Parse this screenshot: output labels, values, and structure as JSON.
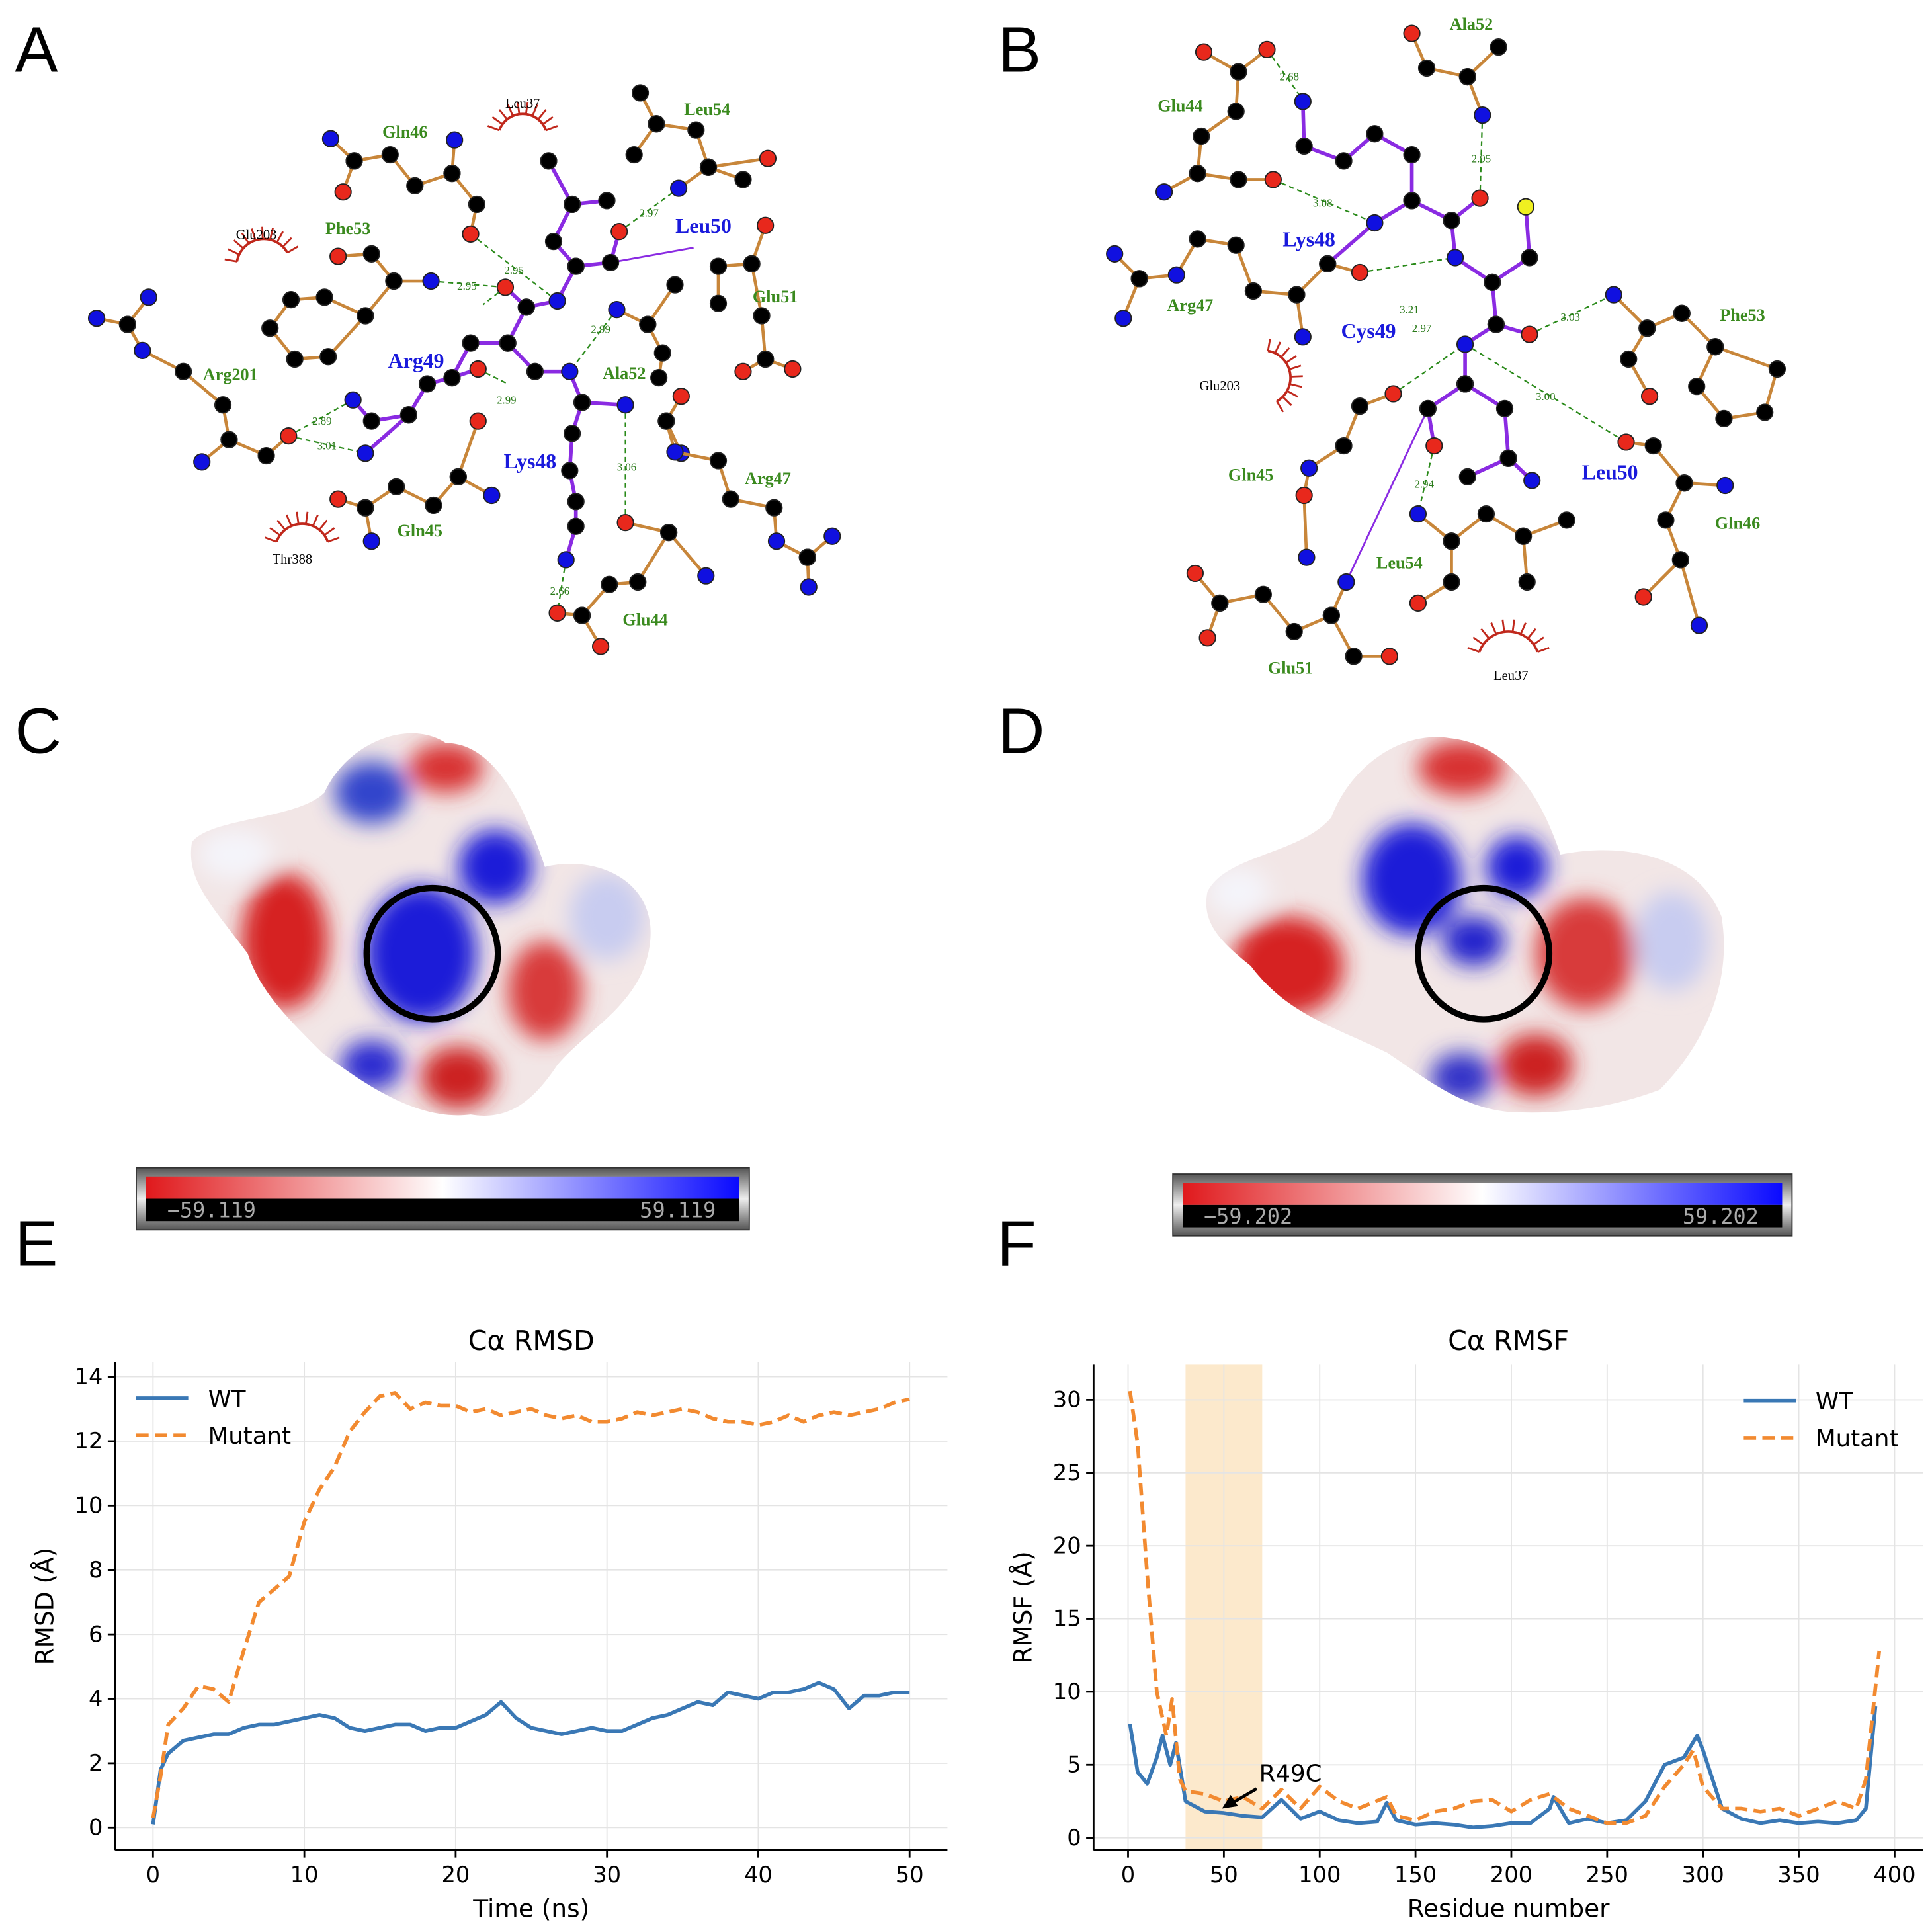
{
  "panels": {
    "A": {
      "label": "A",
      "residues": [
        "Gln46",
        "Leu37",
        "Leu54",
        "Glu203",
        "Phe53",
        "Leu50",
        "Glu51",
        "Arg201",
        "Arg49",
        "Ala52",
        "Lys48",
        "Arg47",
        "Gln45",
        "Thr388",
        "Glu44"
      ],
      "distances": [
        "2.97",
        "2.95",
        "2.95",
        "2.99",
        "2.99",
        "2.89",
        "3.01",
        "3.06",
        "2.66"
      ]
    },
    "B": {
      "label": "B",
      "residues": [
        "Ala52",
        "Glu44",
        "Lys48",
        "Arg47",
        "Cys49",
        "Phe53",
        "Glu203",
        "Gln45",
        "Leu50",
        "Gln46",
        "Leu54",
        "Glu51",
        "Leu37"
      ],
      "distances": [
        "2.68",
        "2.95",
        "3.08",
        "3.21",
        "2.97",
        "3.03",
        "3.00",
        "2.94"
      ]
    },
    "C": {
      "label": "C",
      "colorbar": {
        "min": "−59.119",
        "max": "59.119"
      }
    },
    "D": {
      "label": "D",
      "colorbar": {
        "min": "−59.202",
        "max": "59.202"
      }
    }
  },
  "chart_data": [
    {
      "type": "line",
      "panel_label": "E",
      "title": "Cα RMSD",
      "xlabel": "Time (ns)",
      "ylabel": "RMSD (Å)",
      "x": [
        0,
        0.5,
        1,
        2,
        3,
        4,
        5,
        6,
        7,
        8,
        9,
        10,
        11,
        12,
        13,
        14,
        15,
        16,
        17,
        18,
        19,
        20,
        21,
        22,
        23,
        24,
        25,
        26,
        27,
        28,
        29,
        30,
        31,
        32,
        33,
        34,
        35,
        36,
        37,
        38,
        39,
        40,
        41,
        42,
        43,
        44,
        45,
        46,
        47,
        48,
        49,
        50
      ],
      "series": [
        {
          "name": "WT",
          "color": "#3a78b5",
          "style": "solid",
          "values": [
            0.1,
            1.8,
            2.3,
            2.7,
            2.8,
            2.9,
            2.9,
            3.1,
            3.2,
            3.2,
            3.3,
            3.4,
            3.5,
            3.4,
            3.1,
            3.0,
            3.1,
            3.2,
            3.2,
            3.0,
            3.1,
            3.1,
            3.3,
            3.5,
            3.9,
            3.4,
            3.1,
            3.0,
            2.9,
            3.0,
            3.1,
            3.0,
            3.0,
            3.2,
            3.4,
            3.5,
            3.7,
            3.9,
            3.8,
            4.2,
            4.1,
            4.0,
            4.2,
            4.2,
            4.3,
            4.5,
            4.3,
            3.7,
            4.1,
            4.1,
            4.2,
            4.2
          ]
        },
        {
          "name": "Mutant",
          "color": "#f28a30",
          "style": "dashed",
          "values": [
            0.3,
            1.6,
            3.2,
            3.7,
            4.4,
            4.3,
            3.9,
            5.5,
            7.0,
            7.4,
            7.8,
            9.5,
            10.5,
            11.2,
            12.3,
            12.9,
            13.4,
            13.5,
            13.0,
            13.2,
            13.1,
            13.1,
            12.9,
            13.0,
            12.8,
            12.9,
            13.0,
            12.8,
            12.7,
            12.8,
            12.6,
            12.6,
            12.7,
            12.9,
            12.8,
            12.9,
            13.0,
            12.9,
            12.7,
            12.6,
            12.6,
            12.5,
            12.6,
            12.8,
            12.6,
            12.8,
            12.9,
            12.8,
            12.9,
            13.0,
            13.2,
            13.3
          ]
        }
      ],
      "xlim": [
        -2.5,
        52.5
      ],
      "ylim": [
        -0.7,
        14.45
      ],
      "xticks": [
        0,
        10,
        20,
        30,
        40,
        50
      ],
      "yticks": [
        0,
        2,
        4,
        6,
        8,
        10,
        12,
        14
      ],
      "grid": true,
      "legend": "upper left"
    },
    {
      "type": "line",
      "panel_label": "F",
      "title": "Cα RMSF",
      "xlabel": "Residue number",
      "ylabel": "RMSF (Å)",
      "series": [
        {
          "name": "WT",
          "color": "#3a78b5",
          "style": "solid",
          "x": [
            1,
            5,
            10,
            15,
            18,
            22,
            25,
            30,
            40,
            50,
            60,
            70,
            80,
            90,
            100,
            110,
            120,
            130,
            135,
            140,
            150,
            160,
            170,
            180,
            190,
            200,
            210,
            220,
            222,
            230,
            240,
            250,
            260,
            270,
            280,
            290,
            297,
            300,
            310,
            320,
            330,
            340,
            350,
            360,
            370,
            380,
            385,
            390
          ],
          "values": [
            7.8,
            4.5,
            3.7,
            5.5,
            7.0,
            5.0,
            6.5,
            2.5,
            1.8,
            1.7,
            1.5,
            1.4,
            2.6,
            1.3,
            1.8,
            1.2,
            1.0,
            1.1,
            2.4,
            1.2,
            0.9,
            1.0,
            0.9,
            0.7,
            0.8,
            1.0,
            1.0,
            2.0,
            2.8,
            1.0,
            1.3,
            1.0,
            1.2,
            2.5,
            5.0,
            5.5,
            7.0,
            6.0,
            2.0,
            1.3,
            1.0,
            1.2,
            1.0,
            1.1,
            1.0,
            1.2,
            2.0,
            9.0
          ]
        },
        {
          "name": "Mutant",
          "color": "#f28a30",
          "style": "dashed",
          "x": [
            1,
            5,
            10,
            15,
            20,
            23,
            27,
            30,
            40,
            50,
            60,
            70,
            80,
            90,
            100,
            110,
            120,
            135,
            140,
            150,
            160,
            170,
            180,
            190,
            200,
            210,
            220,
            230,
            240,
            250,
            260,
            270,
            280,
            290,
            295,
            300,
            310,
            320,
            330,
            340,
            350,
            360,
            370,
            380,
            385,
            392
          ],
          "values": [
            30.6,
            27,
            18,
            10,
            7,
            9.5,
            4,
            3.2,
            3.0,
            2.5,
            2.8,
            2.0,
            3.3,
            2.0,
            3.5,
            2.5,
            2.0,
            2.8,
            1.5,
            1.2,
            1.8,
            2.0,
            2.5,
            2.6,
            1.8,
            2.6,
            3.0,
            2.0,
            1.5,
            1.0,
            1.0,
            1.5,
            3.5,
            5.0,
            6.0,
            3.5,
            2.0,
            2.0,
            1.8,
            2.0,
            1.5,
            2.0,
            2.5,
            2.0,
            4.0,
            12.8
          ]
        }
      ],
      "xlim": [
        -18,
        415
      ],
      "ylim": [
        -0.85,
        32.4
      ],
      "xticks": [
        0,
        50,
        100,
        150,
        200,
        250,
        300,
        350,
        400
      ],
      "yticks": [
        0,
        5,
        10,
        15,
        20,
        25,
        30
      ],
      "grid": true,
      "legend": "upper right",
      "highlight": [
        30,
        70
      ],
      "annotation": {
        "text": "R49C",
        "x": 49,
        "y": 2
      }
    }
  ]
}
